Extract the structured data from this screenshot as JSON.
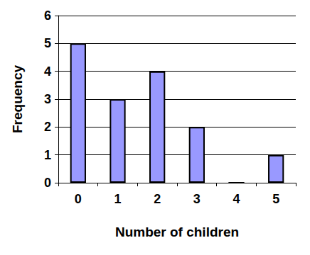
{
  "chart_data": {
    "type": "bar",
    "xlabel": "Number of children",
    "ylabel": "Frequency",
    "categories": [
      "0",
      "1",
      "2",
      "3",
      "4",
      "5"
    ],
    "values": [
      5,
      3,
      4,
      2,
      0,
      1
    ],
    "color": "#9999ff",
    "ylim": [
      0,
      6
    ],
    "yticks": [
      0,
      1,
      2,
      3,
      4,
      5,
      6
    ],
    "grid": true
  }
}
